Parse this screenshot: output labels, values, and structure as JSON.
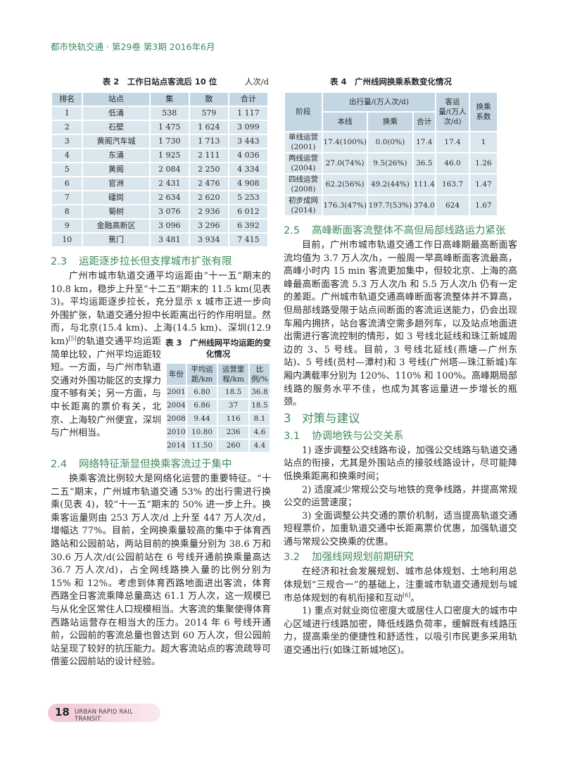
{
  "header": {
    "journal": "都市快轨交通 · 第29卷 第3期 2016年6月"
  },
  "table2": {
    "title": "表 2　工作日站点客流后 10 位",
    "unit": "人次/d",
    "columns": [
      "排名",
      "站点",
      "集",
      "散",
      "合计"
    ],
    "rows": [
      [
        "1",
        "低涌",
        "538",
        "579",
        "1 117"
      ],
      [
        "2",
        "石壁",
        "1 475",
        "1 624",
        "3 099"
      ],
      [
        "3",
        "黄阁汽车城",
        "1 730",
        "1 713",
        "3 443"
      ],
      [
        "4",
        "东涌",
        "1 925",
        "2 111",
        "4 036"
      ],
      [
        "5",
        "黄阁",
        "2 084",
        "2 250",
        "4 334"
      ],
      [
        "6",
        "官洲",
        "2 431",
        "2 476",
        "4 908"
      ],
      [
        "7",
        "礌岗",
        "2 634",
        "2 620",
        "5 253"
      ],
      [
        "8",
        "菊树",
        "3 076",
        "2 936",
        "6 012"
      ],
      [
        "9",
        "金融高新区",
        "3 096",
        "3 296",
        "6 392"
      ],
      [
        "10",
        "蕉门",
        "3 481",
        "3 934",
        "7 415"
      ]
    ]
  },
  "table4": {
    "title": "表 4　广州线网换乘系数变化情况",
    "head": {
      "stage": "阶段",
      "trips": "出行量/(万人次/d)",
      "own": "本线",
      "transfer": "换乘",
      "total": "合计",
      "volume": "客运量/(万人次/d)",
      "coef": "换乘系数"
    },
    "rows": [
      [
        "单线运营(2001)",
        "17.4(100%)",
        "0.0(0%)",
        "17.4",
        "17.4",
        "1"
      ],
      [
        "两线运营(2004)",
        "27.0(74%)",
        "9.5(26%)",
        "36.5",
        "46.0",
        "1.26"
      ],
      [
        "四线运营(2008)",
        "62.2(56%)",
        "49.2(44%)",
        "111.4",
        "163.7",
        "1.47"
      ],
      [
        "初步成网(2014)",
        "176.3(47%)",
        "197.7(53%)",
        "374.0",
        "624",
        "1.67"
      ]
    ]
  },
  "table3": {
    "title": "表 3　广州线网平均运距的变化情况",
    "columns": [
      "年份",
      "平均运距/km",
      "运营里程/km",
      "比例/%"
    ],
    "rows": [
      [
        "2001",
        "6.80",
        "18.5",
        "36.8"
      ],
      [
        "2004",
        "6.86",
        "37",
        "18.5"
      ],
      [
        "2008",
        "9.44",
        "116",
        "8.1"
      ],
      [
        "2010",
        "10.80",
        "236",
        "4.6"
      ],
      [
        "2014",
        "11.50",
        "260",
        "4.4"
      ]
    ]
  },
  "s23": {
    "num": "2.3",
    "title": "运距逐步拉长但支撑城市扩张有限",
    "p1a": "广州市城市轨道交通平均运距由“十一五”期末的 10.8 km，稳步上升至“十二五”期末的 11.5 km(见表3)。平均运距逐步拉长，充分显示 x 城市正进一步向外围扩张，轨道交通分担中长距离出行的作用明显。然而，与北京(15.4 km)、上海(14.5 km)、深圳(12.9 km)",
    "ref": "[5]",
    "p1b": "的轨道交通平均运距简单比较，广州平均运距较短。一方面，与广州市轨道交通对外围功能区的支撑力度不够有关；另一方面，与中长距离的票价有关，北京、上海较广州便宜，深圳与广州相当。"
  },
  "s24": {
    "num": "2.4",
    "title": "网络特征渐显但换乘客流过于集中",
    "p1": "换乘客流比例较大是网络化运营的重要特征。“十二五”期末，广州城市轨道交通 53% 的出行需进行换乘(见表 4)，较“十一五”期末的 50% 进一步上升。换乘客运量则由 253 万人次/d 上升至 447 万人次/d，增幅达 77%。目前，全网换乘量较高的集中于体育西路站和公园前站，两站目前的换乘量分别为 38.6 万和 30.6 万人次/d(公园前站在 6 号线开通前换乘量高达 36.7 万人次/d)，占全网线路换入量的比例分别为 15% 和 12%。考虑到体育西路地面进出客流，体育西路全日客流乘降总量高达 61.1 万人次，这一规模已与从化全区常住人口规模相当。大客流的集聚使得体育西路站运营存在相当大的压力。2014 年 6 号线开通前，公园前的客流总量也曾达到 60 万人次，但公园前站呈现了较好的抗压能力。超大客流站点的客流疏导可借鉴公园前站的设计经验。"
  },
  "s25": {
    "num": "2.5",
    "title": "高峰断面客流整体不高但局部线路运力紧张",
    "p1": "目前，广州市城市轨道交通工作日高峰期最高断面客流均值为 3.7 万人次/h，一般周一早高峰断面客流最高，高峰小时内 15 min 客流更加集中，但较北京、上海的高峰最高断面客流 5.3 万人次/h 和 5.5 万人次/h 仍有一定的差距。广州城市轨道交通高峰断面客流整体并不算高，但局部线路受限于站点间断面的客流运送能力，仍会出现车厢内拥挤，站台客流清空需多趟列车，以及站点地面进出需进行客流控制的情形，如 3 号线北延线和珠江新城周边的 3、5 号线。目前，3 号线北延线(燕塘—广州东站)、5 号线(员村—潭村)和 3 号线(广州塔—珠江新城)车厢内满载率分别为 120%、110% 和 100%。高峰期局部线路的服务水平不佳，也成为其客运量进一步增长的瓶颈。"
  },
  "s3": {
    "num": "3",
    "title": "对策与建议"
  },
  "s31": {
    "num": "3.1",
    "title": "协调地铁与公交关系",
    "items": [
      "1) 逐步调整公交线路布设，加强公交线路与轨道交通站点的衔接，尤其是外围站点的接驳线路设计，尽可能降低换乘距离和换乘时间；",
      "2) 适度减少常规公交与地铁的竞争线路，并提高常规公交的运营速度；",
      "3) 全面调整公共交通的票价机制，适当提高轨道交通短程票价，加重轨道交通中长距离票价优惠，加强轨道交通与常规公交换乘的优惠。"
    ]
  },
  "s32": {
    "num": "3.2",
    "title": "加强线网规划前期研究",
    "p1a": "在经济和社会发展规划、城市总体规划、土地利用总体规划“三规合一”的基础上，注重城市轨道交通规划与城市总体规划的有机衔接和互动",
    "ref": "[6]",
    "p1b": "。",
    "p2": "1) 重点对就业岗位密度大或居住人口密度大的城市中心区域进行线路加密，降低线路负荷率，缓解既有线路压力，提高乘坐的便捷性和舒适性，以吸引市民更多采用轨道交通出行(如珠江新城地区)。"
  },
  "footer": {
    "page": "18",
    "journal_en": "URBAN RAPID RAIL TRANSIT"
  },
  "colors": {
    "heading_green": "#3f8a5c",
    "table_header": "#c3d6e2",
    "table_body": "#dbe7ee",
    "footer_pink": "#f2c6d6"
  }
}
